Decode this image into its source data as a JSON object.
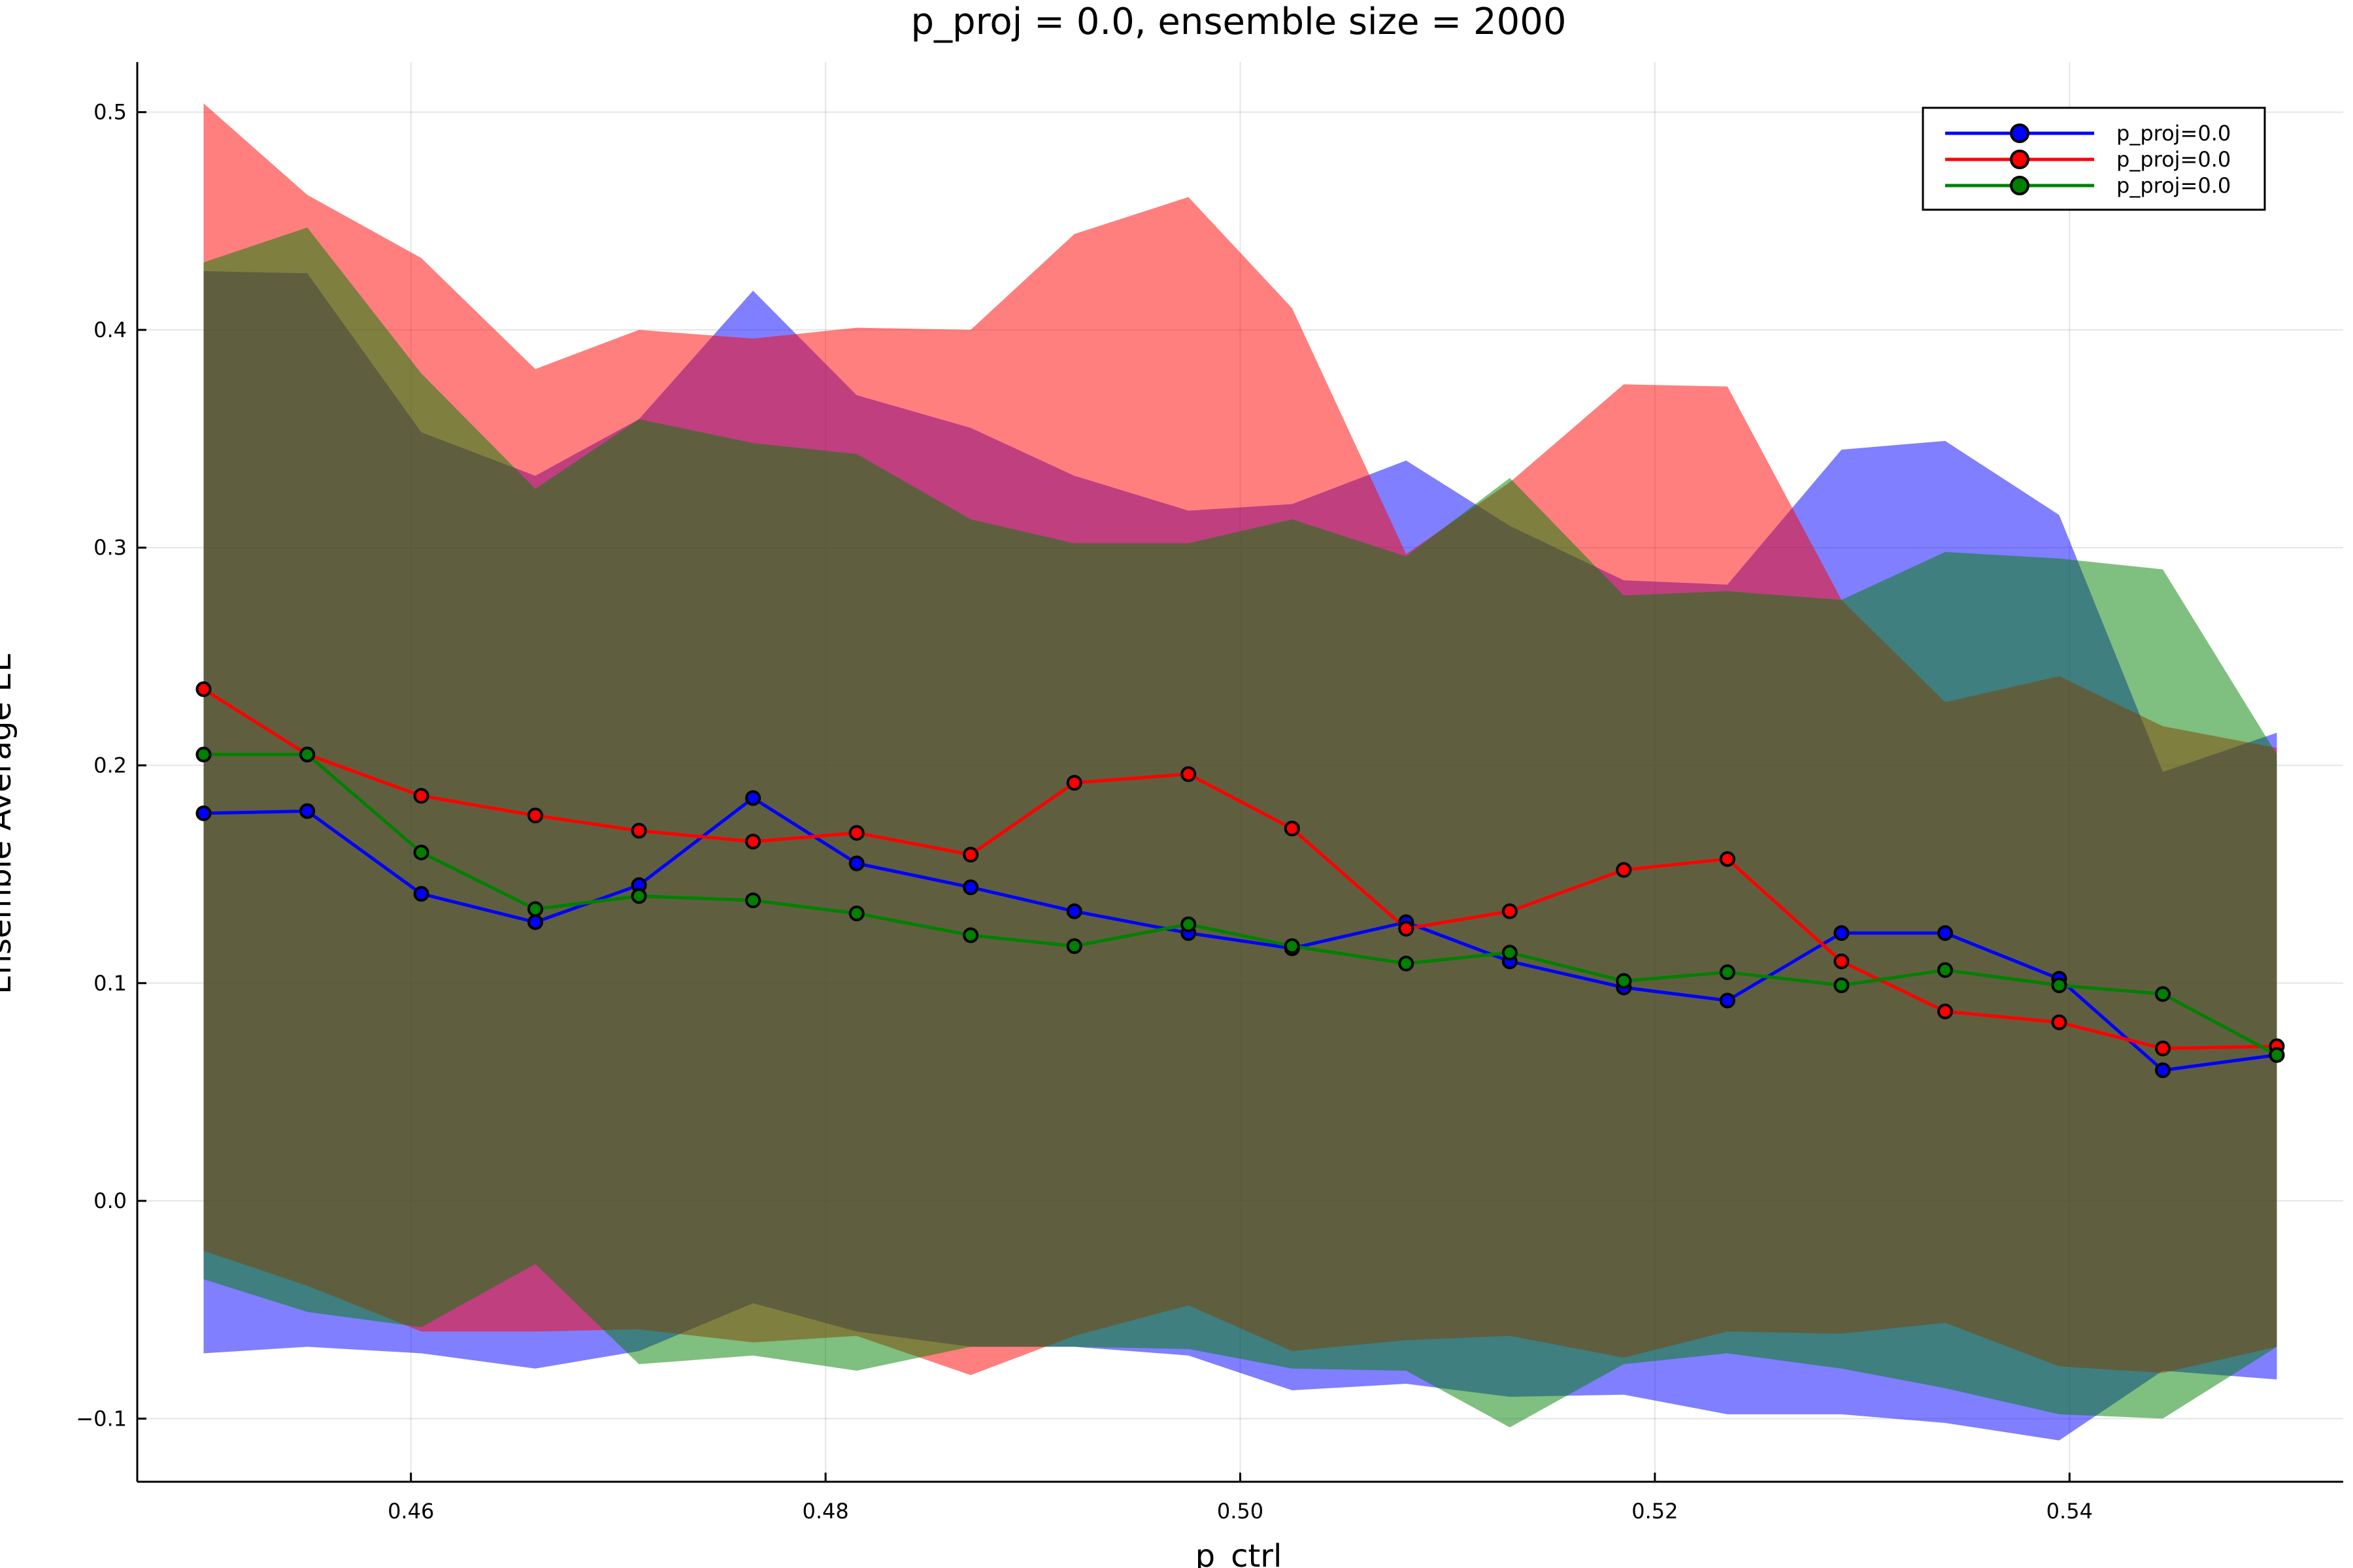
{
  "chart_data": {
    "type": "line",
    "title": "p_proj = 0.0, ensemble size = 2000",
    "xlabel": "p_ctrl",
    "ylabel": "Ensemble Average EE",
    "xlim": [
      0.4468,
      0.5532
    ],
    "ylim": [
      -0.129,
      0.523
    ],
    "xticks": [
      0.46,
      0.48,
      0.5,
      0.52,
      0.54
    ],
    "xtick_labels": [
      "0.46",
      "0.48",
      "0.50",
      "0.52",
      "0.54"
    ],
    "yticks": [
      -0.1,
      0.0,
      0.1,
      0.2,
      0.3,
      0.4,
      0.5
    ],
    "ytick_labels": [
      "−0.1",
      "0.0",
      "0.1",
      "0.2",
      "0.3",
      "0.4",
      "0.5"
    ],
    "grid": true,
    "legend_position": "top-right",
    "x": [
      0.45,
      0.455,
      0.4605,
      0.466,
      0.471,
      0.4765,
      0.4815,
      0.487,
      0.492,
      0.4975,
      0.5025,
      0.508,
      0.513,
      0.5185,
      0.5235,
      0.529,
      0.534,
      0.5395,
      0.5445,
      0.55
    ],
    "series": [
      {
        "name": "p_proj=0.0",
        "color": "#0000ff",
        "values": [
          0.178,
          0.179,
          0.141,
          0.128,
          0.145,
          0.185,
          0.155,
          0.144,
          0.133,
          0.123,
          0.116,
          0.128,
          0.11,
          0.098,
          0.092,
          0.123,
          0.123,
          0.102,
          0.06,
          0.067
        ],
        "upper": [
          0.427,
          0.426,
          0.353,
          0.333,
          0.359,
          0.418,
          0.37,
          0.355,
          0.333,
          0.317,
          0.32,
          0.34,
          0.31,
          0.285,
          0.283,
          0.345,
          0.349,
          0.315,
          0.197,
          0.215
        ],
        "lower": [
          -0.07,
          -0.067,
          -0.07,
          -0.077,
          -0.069,
          -0.047,
          -0.06,
          -0.067,
          -0.067,
          -0.071,
          -0.087,
          -0.084,
          -0.09,
          -0.089,
          -0.098,
          -0.098,
          -0.102,
          -0.11,
          -0.078,
          -0.082
        ]
      },
      {
        "name": "p_proj=0.0",
        "color": "#ff0000",
        "values": [
          0.235,
          0.205,
          0.186,
          0.177,
          0.17,
          0.165,
          0.169,
          0.159,
          0.192,
          0.196,
          0.171,
          0.125,
          0.133,
          0.152,
          0.157,
          0.11,
          0.087,
          0.082,
          0.07,
          0.071
        ],
        "upper": [
          0.504,
          0.462,
          0.433,
          0.382,
          0.4,
          0.396,
          0.401,
          0.4,
          0.444,
          0.461,
          0.41,
          0.297,
          0.33,
          0.375,
          0.374,
          0.276,
          0.229,
          0.241,
          0.218,
          0.208
        ],
        "lower": [
          -0.023,
          -0.039,
          -0.06,
          -0.06,
          -0.059,
          -0.065,
          -0.062,
          -0.08,
          -0.062,
          -0.048,
          -0.069,
          -0.064,
          -0.062,
          -0.072,
          -0.06,
          -0.061,
          -0.056,
          -0.076,
          -0.079,
          -0.067
        ]
      },
      {
        "name": "p_proj=0.0",
        "color": "#008000",
        "values": [
          0.205,
          0.205,
          0.16,
          0.134,
          0.14,
          0.138,
          0.132,
          0.122,
          0.117,
          0.127,
          0.117,
          0.109,
          0.114,
          0.101,
          0.105,
          0.099,
          0.106,
          0.099,
          0.095,
          0.067
        ],
        "upper": [
          0.431,
          0.447,
          0.38,
          0.327,
          0.359,
          0.348,
          0.343,
          0.313,
          0.302,
          0.302,
          0.313,
          0.296,
          0.332,
          0.278,
          0.28,
          0.276,
          0.298,
          0.295,
          0.29,
          0.205
        ],
        "lower": [
          -0.036,
          -0.051,
          -0.058,
          -0.029,
          -0.075,
          -0.071,
          -0.078,
          -0.067,
          -0.067,
          -0.068,
          -0.077,
          -0.078,
          -0.104,
          -0.075,
          -0.07,
          -0.077,
          -0.086,
          -0.098,
          -0.1,
          -0.067
        ]
      }
    ]
  }
}
